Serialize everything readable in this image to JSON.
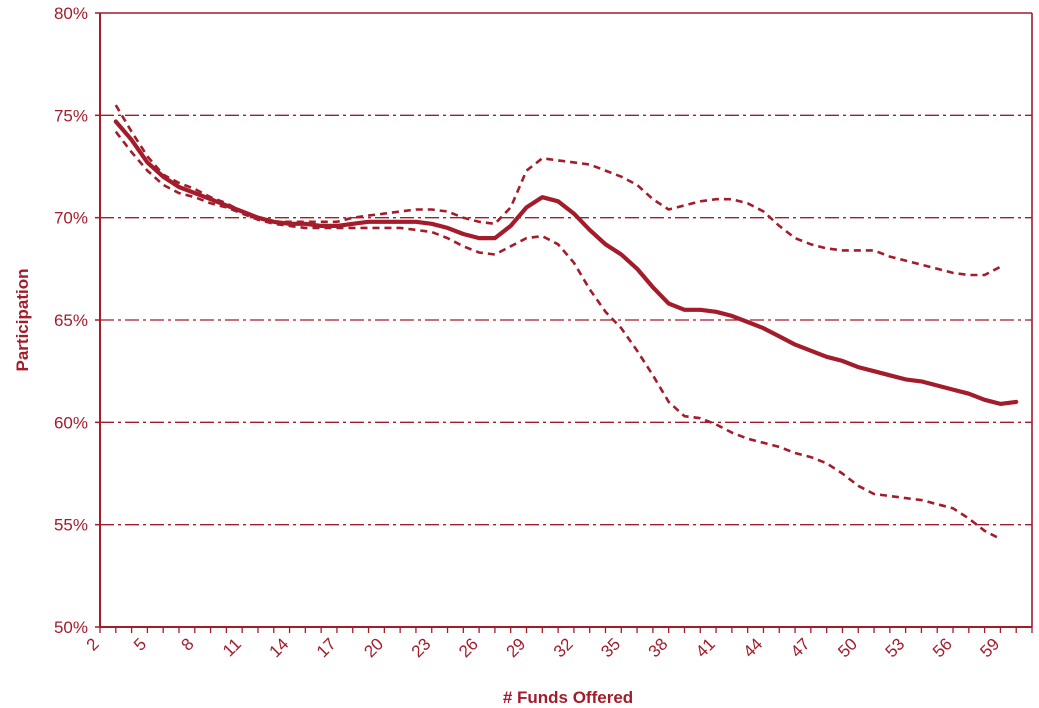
{
  "chart_data": {
    "type": "line",
    "title": "",
    "xlabel": "# Funds Offered",
    "ylabel": "Participation",
    "xlim": [
      2,
      61
    ],
    "ylim": [
      50,
      80
    ],
    "y_ticks": [
      50,
      55,
      60,
      65,
      70,
      75,
      80
    ],
    "y_tick_labels": [
      "50%",
      "55%",
      "60%",
      "65%",
      "70%",
      "75%",
      "80%"
    ],
    "x_tick_labels": [
      2,
      5,
      8,
      11,
      14,
      17,
      20,
      23,
      26,
      29,
      32,
      35,
      38,
      41,
      44,
      47,
      50,
      53,
      56,
      59
    ],
    "grid": "horizontal dash-dot",
    "color": "#a31c2b",
    "series": [
      {
        "style": "solid",
        "x": [
          3,
          4,
          5,
          6,
          7,
          8,
          9,
          10,
          11,
          12,
          13,
          14,
          15,
          16,
          17,
          18,
          19,
          20,
          21,
          22,
          23,
          24,
          25,
          26,
          27,
          28,
          29,
          30,
          31,
          32,
          33,
          34,
          35,
          36,
          37,
          38,
          39,
          40,
          41,
          42,
          43,
          44,
          45,
          46,
          47,
          48,
          49,
          50,
          51,
          52,
          53,
          54,
          55,
          56,
          57,
          58,
          59,
          60
        ],
        "y": [
          74.7,
          73.8,
          72.7,
          72.0,
          71.5,
          71.2,
          70.9,
          70.6,
          70.3,
          70.0,
          69.8,
          69.7,
          69.7,
          69.6,
          69.6,
          69.7,
          69.8,
          69.8,
          69.8,
          69.8,
          69.7,
          69.5,
          69.2,
          69.0,
          69.0,
          69.6,
          70.5,
          71.0,
          70.8,
          70.2,
          69.4,
          68.7,
          68.2,
          67.5,
          66.6,
          65.8,
          65.5,
          65.5,
          65.4,
          65.2,
          64.9,
          64.6,
          64.2,
          63.8,
          63.5,
          63.2,
          63.0,
          62.7,
          62.5,
          62.3,
          62.1,
          62.0,
          61.8,
          61.6,
          61.4,
          61.1,
          60.9,
          61.0
        ]
      },
      {
        "style": "dashed",
        "x": [
          3,
          4,
          5,
          6,
          7,
          8,
          9,
          10,
          11,
          12,
          13,
          14,
          15,
          16,
          17,
          18,
          19,
          20,
          21,
          22,
          23,
          24,
          25,
          26,
          27,
          28,
          29,
          30,
          31,
          32,
          33,
          34,
          35,
          36,
          37,
          38,
          39,
          40,
          41,
          42,
          43,
          44,
          45,
          46,
          47,
          48,
          49,
          50,
          51,
          52,
          53,
          54,
          55,
          56,
          57,
          58,
          59
        ],
        "y": [
          75.5,
          74.2,
          73.0,
          72.1,
          71.7,
          71.4,
          71.0,
          70.7,
          70.3,
          70.0,
          69.8,
          69.8,
          69.8,
          69.8,
          69.8,
          70.0,
          70.1,
          70.2,
          70.3,
          70.4,
          70.4,
          70.3,
          70.0,
          69.8,
          69.7,
          70.5,
          72.3,
          72.9,
          72.8,
          72.7,
          72.6,
          72.3,
          72.0,
          71.6,
          70.9,
          70.4,
          70.6,
          70.8,
          70.9,
          70.9,
          70.7,
          70.3,
          69.6,
          69.0,
          68.7,
          68.5,
          68.4,
          68.4,
          68.4,
          68.1,
          67.9,
          67.7,
          67.5,
          67.3,
          67.2,
          67.2,
          67.6
        ]
      },
      {
        "style": "dashed",
        "x": [
          3,
          4,
          5,
          6,
          7,
          8,
          9,
          10,
          11,
          12,
          13,
          14,
          15,
          16,
          17,
          18,
          19,
          20,
          21,
          22,
          23,
          24,
          25,
          26,
          27,
          28,
          29,
          30,
          31,
          32,
          33,
          34,
          35,
          36,
          37,
          38,
          39,
          40,
          41,
          42,
          43,
          44,
          45,
          46,
          47,
          48,
          49,
          50,
          51,
          52,
          53,
          54,
          55,
          56,
          57,
          58,
          59
        ],
        "y": [
          74.2,
          73.2,
          72.3,
          71.6,
          71.2,
          71.0,
          70.7,
          70.5,
          70.2,
          69.9,
          69.7,
          69.6,
          69.5,
          69.5,
          69.5,
          69.5,
          69.5,
          69.5,
          69.5,
          69.4,
          69.3,
          69.0,
          68.6,
          68.3,
          68.2,
          68.6,
          69.0,
          69.1,
          68.7,
          67.8,
          66.5,
          65.4,
          64.6,
          63.5,
          62.3,
          61.0,
          60.3,
          60.2,
          59.9,
          59.5,
          59.2,
          59.0,
          58.8,
          58.5,
          58.3,
          58.0,
          57.5,
          56.9,
          56.5,
          56.4,
          56.3,
          56.2,
          56.0,
          55.8,
          55.3,
          54.7,
          54.3
        ]
      }
    ]
  }
}
